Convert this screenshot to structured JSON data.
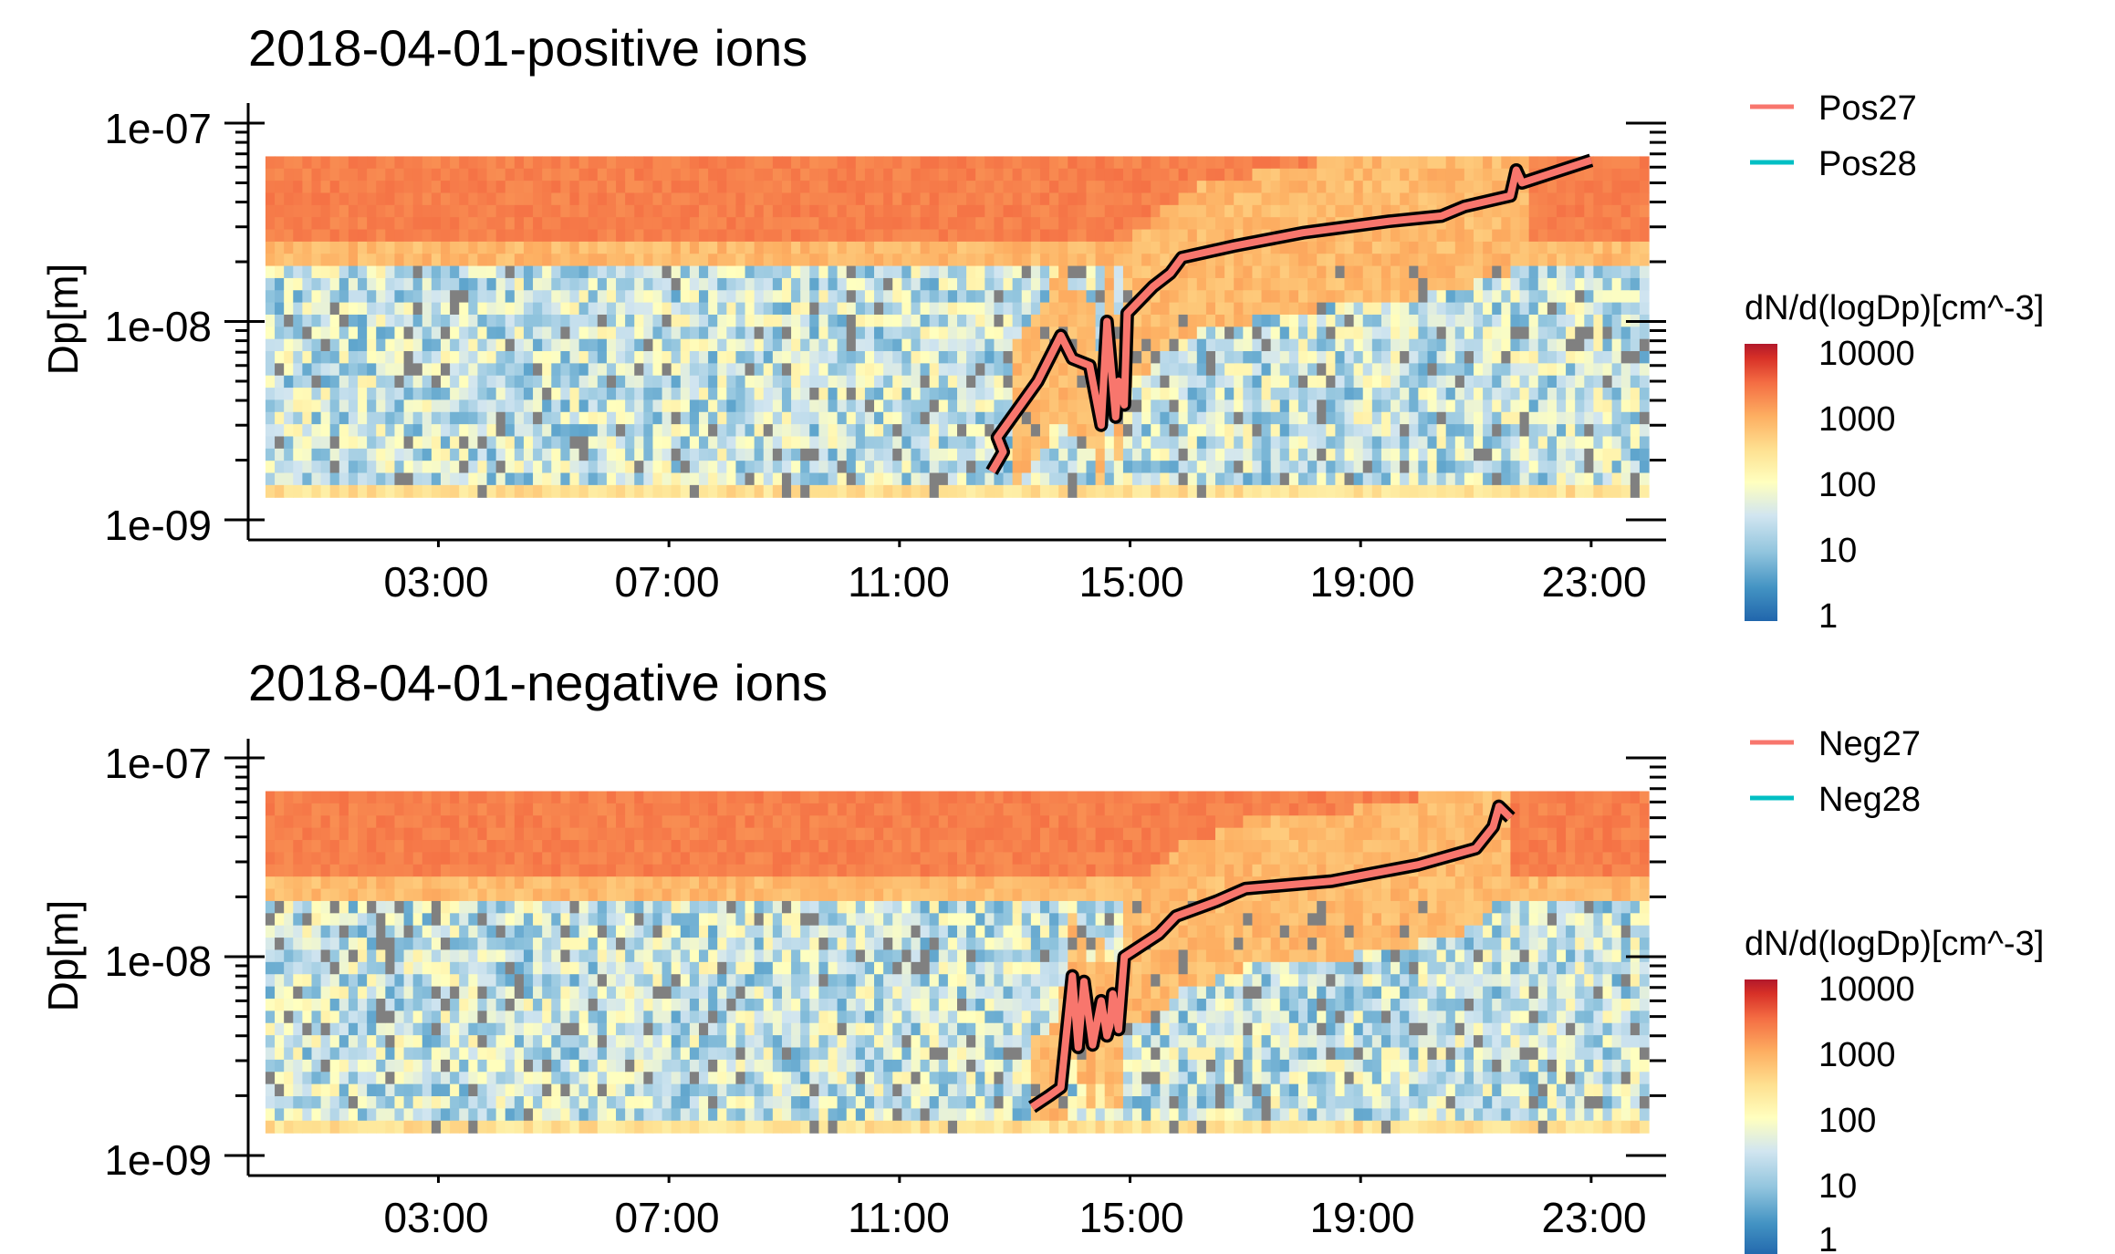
{
  "chart_data": [
    {
      "type": "heatmap",
      "title": "2018-04-01-positive ions",
      "xlabel": "",
      "ylabel": "Dp[m]",
      "x_ticks": [
        "03:00",
        "07:00",
        "11:00",
        "15:00",
        "19:00",
        "23:00"
      ],
      "x_tick_hours": [
        3,
        7,
        11,
        15,
        19,
        23
      ],
      "xlim_hours": [
        -0.3,
        24.3
      ],
      "y_scale": "log",
      "y_ticks": [
        "1e-07",
        "1e-08",
        "1e-09"
      ],
      "y_tick_values": [
        1e-07,
        1e-08,
        1e-09
      ],
      "ylim": [
        8e-10,
        1.3e-07
      ],
      "data_range_hours": [
        0.0,
        24.0
      ],
      "data_range_dp": [
        1.3e-09,
        6.8e-08
      ],
      "legend": [
        "Pos27",
        "Pos28"
      ],
      "legend_colors": [
        "#F8766D",
        "#00BFC4"
      ],
      "colorbar": {
        "title": "dN/d(logDp)[cm^-3]",
        "ticks": [
          "10000",
          "1000",
          "100",
          "10",
          "1"
        ],
        "tick_values": [
          10000,
          1000,
          100,
          10,
          1
        ],
        "scale": "log",
        "colors": [
          "#2166AC",
          "#4393C3",
          "#92C5DE",
          "#D1E5F0",
          "#FFFFBF",
          "#FEE090",
          "#FDAE61",
          "#F46D43",
          "#D73027",
          "#B2182B"
        ]
      },
      "series": [
        {
          "name": "Pos27",
          "color": "#F8766D",
          "points": [
            [
              12.6,
              1.75e-09
            ],
            [
              12.8,
              2.2e-09
            ],
            [
              12.7,
              2.6e-09
            ],
            [
              13.4,
              5e-09
            ],
            [
              13.8,
              8.5e-09
            ],
            [
              14.0,
              6.5e-09
            ],
            [
              14.3,
              6e-09
            ],
            [
              14.5,
              3e-09
            ],
            [
              14.6,
              1e-08
            ],
            [
              14.75,
              3.3e-09
            ],
            [
              14.8,
              5e-09
            ],
            [
              14.9,
              3.8e-09
            ],
            [
              14.95,
              1.1e-08
            ],
            [
              15.4,
              1.5e-08
            ],
            [
              15.7,
              1.75e-08
            ],
            [
              15.9,
              2.1e-08
            ],
            [
              16.8,
              2.4e-08
            ],
            [
              18.0,
              2.8e-08
            ],
            [
              19.5,
              3.2e-08
            ],
            [
              20.4,
              3.4e-08
            ],
            [
              20.8,
              3.8e-08
            ],
            [
              21.6,
              4.3e-08
            ],
            [
              21.7,
              5.8e-08
            ],
            [
              21.8,
              5e-08
            ],
            [
              23.0,
              6.5e-08
            ]
          ]
        }
      ]
    },
    {
      "type": "heatmap",
      "title": "2018-04-01-negative ions",
      "xlabel": "",
      "ylabel": "Dp[m]",
      "x_ticks": [
        "03:00",
        "07:00",
        "11:00",
        "15:00",
        "19:00",
        "23:00"
      ],
      "x_tick_hours": [
        3,
        7,
        11,
        15,
        19,
        23
      ],
      "xlim_hours": [
        -0.3,
        24.3
      ],
      "y_scale": "log",
      "y_ticks": [
        "1e-07",
        "1e-08",
        "1e-09"
      ],
      "y_tick_values": [
        1e-07,
        1e-08,
        1e-09
      ],
      "ylim": [
        8e-10,
        1.3e-07
      ],
      "data_range_hours": [
        0.0,
        24.0
      ],
      "data_range_dp": [
        1.3e-09,
        6.8e-08
      ],
      "legend": [
        "Neg27",
        "Neg28"
      ],
      "legend_colors": [
        "#F8766D",
        "#00BFC4"
      ],
      "colorbar": {
        "title": "dN/d(logDp)[cm^-3]",
        "ticks": [
          "10000",
          "1000",
          "100",
          "10",
          "1"
        ],
        "tick_values": [
          10000,
          1000,
          100,
          10,
          1
        ],
        "scale": "log",
        "colors": [
          "#2166AC",
          "#4393C3",
          "#92C5DE",
          "#D1E5F0",
          "#FFFFBF",
          "#FEE090",
          "#FDAE61",
          "#F46D43",
          "#D73027",
          "#B2182B"
        ]
      },
      "series": [
        {
          "name": "Neg27",
          "color": "#F8766D",
          "points": [
            [
              13.3,
              1.75e-09
            ],
            [
              13.6,
              2e-09
            ],
            [
              13.8,
              2.2e-09
            ],
            [
              14.0,
              8e-09
            ],
            [
              14.1,
              3.5e-09
            ],
            [
              14.2,
              7.5e-09
            ],
            [
              14.35,
              3.6e-09
            ],
            [
              14.5,
              6e-09
            ],
            [
              14.6,
              4e-09
            ],
            [
              14.65,
              4.5e-09
            ],
            [
              14.7,
              6.5e-09
            ],
            [
              14.8,
              4.3e-09
            ],
            [
              14.9,
              1e-08
            ],
            [
              15.5,
              1.3e-08
            ],
            [
              15.8,
              1.6e-08
            ],
            [
              16.5,
              1.9e-08
            ],
            [
              17.0,
              2.2e-08
            ],
            [
              18.5,
              2.4e-08
            ],
            [
              20.0,
              2.9e-08
            ],
            [
              21.0,
              3.5e-08
            ],
            [
              21.3,
              4.5e-08
            ],
            [
              21.4,
              5.7e-08
            ],
            [
              21.6,
              5e-08
            ]
          ]
        }
      ]
    }
  ]
}
